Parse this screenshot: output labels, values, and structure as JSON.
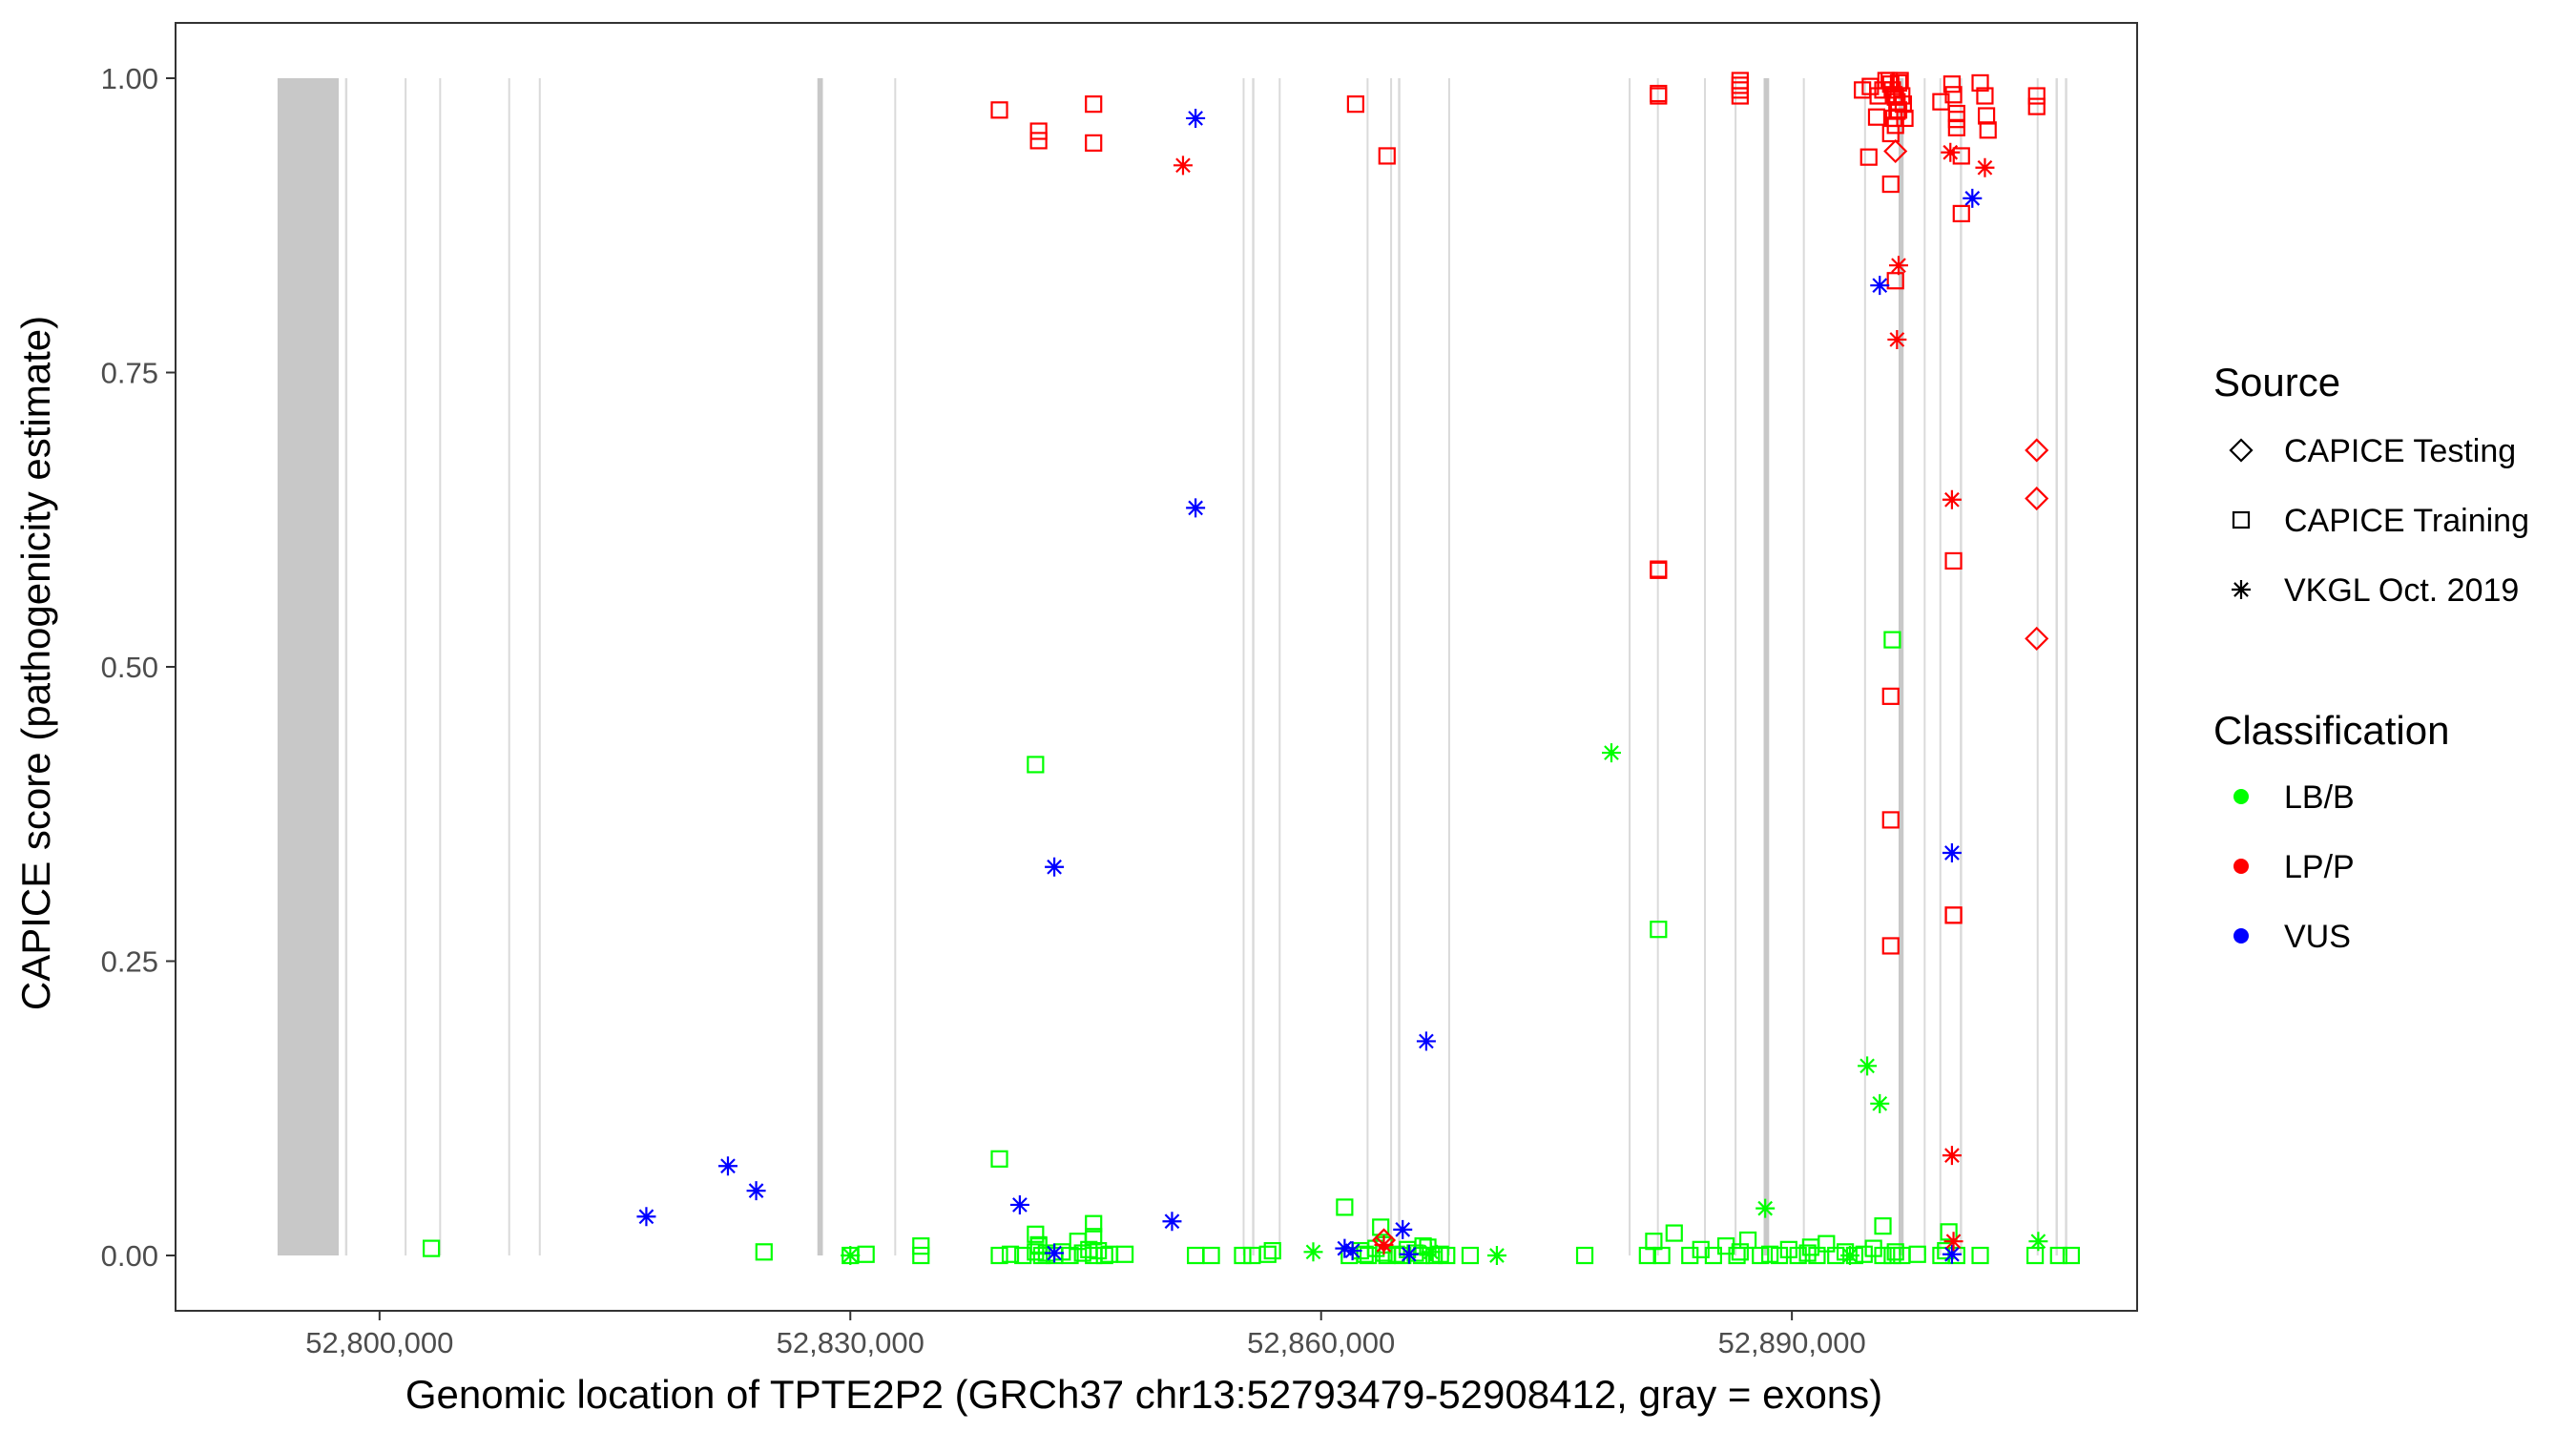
{
  "chart_data": {
    "type": "scatter",
    "title": "",
    "xlabel": "Genomic location of TPTE2P2 (GRCh37 chr13:52793479-52908412, gray = exons)",
    "ylabel": "CAPICE score (pathogenicity estimate)",
    "xlim": [
      52787000,
      52912000
    ],
    "ylim": [
      -0.047,
      1.047
    ],
    "x_ticks": [
      52800000,
      52830000,
      52860000,
      52890000
    ],
    "x_tick_labels": [
      "52,800,000",
      "52,830,000",
      "52,860,000",
      "52,890,000"
    ],
    "y_ticks": [
      0,
      0.25,
      0.5,
      0.75,
      1
    ],
    "y_tick_labels": [
      "0.00",
      "0.25",
      "0.50",
      "0.75",
      "1.00"
    ],
    "grid": false,
    "legend_position": "right",
    "legend": {
      "source_title": "Source",
      "sources": [
        {
          "key": "testing",
          "label": "CAPICE Testing",
          "shape": "diamond"
        },
        {
          "key": "training",
          "label": "CAPICE Training",
          "shape": "square"
        },
        {
          "key": "vkgl",
          "label": "VKGL Oct. 2019",
          "shape": "asterisk"
        }
      ],
      "classification_title": "Classification",
      "classes": [
        {
          "key": "LB/B",
          "label": "LB/B",
          "color": "#00ff00"
        },
        {
          "key": "LP/P",
          "label": "LP/P",
          "color": "#ff0000"
        },
        {
          "key": "VUS",
          "label": "VUS",
          "color": "#0000ff"
        }
      ]
    },
    "exons": [
      [
        52793500,
        52797400
      ],
      [
        52797800,
        52797950
      ],
      [
        52801600,
        52801720
      ],
      [
        52803800,
        52803920
      ],
      [
        52808200,
        52808320
      ],
      [
        52810150,
        52810270
      ],
      [
        52827900,
        52828250
      ],
      [
        52832800,
        52832900
      ],
      [
        52855000,
        52855120
      ],
      [
        52855600,
        52855750
      ],
      [
        52857300,
        52857420
      ],
      [
        52862900,
        52863020
      ],
      [
        52864400,
        52864520
      ],
      [
        52864900,
        52865050
      ],
      [
        52868100,
        52868220
      ],
      [
        52879600,
        52879720
      ],
      [
        52881400,
        52881500
      ],
      [
        52884400,
        52884520
      ],
      [
        52886350,
        52886450
      ],
      [
        52888200,
        52888550
      ],
      [
        52890700,
        52890800
      ],
      [
        52894600,
        52894720
      ],
      [
        52896800,
        52897120
      ],
      [
        52898400,
        52898520
      ],
      [
        52899400,
        52899520
      ],
      [
        52900700,
        52900850
      ],
      [
        52905600,
        52905720
      ],
      [
        52906800,
        52906950
      ],
      [
        52907400,
        52907550
      ]
    ],
    "series": [
      {
        "name": "CAPICE Training LP/P",
        "source": "training",
        "class": "LP/P",
        "x": [
          52839500,
          52842000,
          52842000,
          52845500,
          52845500,
          52862200,
          52864200,
          52881500,
          52881500,
          52881500,
          52886700,
          52886700,
          52886700,
          52886700,
          52894500,
          52895000,
          52895500,
          52895800,
          52896000,
          52896200,
          52896300,
          52896400,
          52896500,
          52896600,
          52896700,
          52896800,
          52896900,
          52897000,
          52897100,
          52897200,
          52895400,
          52896800,
          52894900,
          52896300,
          52896500,
          52896600,
          52896700,
          52899500,
          52900200,
          52900300,
          52900500,
          52900500,
          52900800,
          52900800,
          52902000,
          52902300,
          52902400,
          52902500,
          52905600,
          52905600,
          52896600,
          52900300,
          52900300,
          52881500,
          52900500,
          52896300,
          52896300,
          52896300,
          52900300,
          52896300
        ],
        "y": [
          0.973,
          0.955,
          0.947,
          0.978,
          0.945,
          0.978,
          0.934,
          0.987,
          0.985,
          0.583,
          0.998,
          0.994,
          0.99,
          0.985,
          0.99,
          0.993,
          0.985,
          0.99,
          0.998,
          0.998,
          0.995,
          0.99,
          0.986,
          0.984,
          0.98,
          0.996,
          0.998,
          0.985,
          0.978,
          0.966,
          0.967,
          0.973,
          0.933,
          0.953,
          0.966,
          0.96,
          0.972,
          0.98,
          0.995,
          0.986,
          0.97,
          0.965,
          0.934,
          0.885,
          0.996,
          0.985,
          0.968,
          0.956,
          0.985,
          0.976,
          0.828,
          0.59,
          0.289,
          0.582,
          0.958,
          0.91,
          0.475,
          0.37,
          0.289,
          0.263
        ]
      },
      {
        "name": "CAPICE Training LB/B",
        "source": "training",
        "class": "LB/B",
        "x": [
          52803300,
          52824500,
          52830000,
          52831000,
          52834500,
          52834500,
          52839500,
          52840200,
          52841000,
          52841800,
          52842000,
          52842200,
          52842500,
          52843000,
          52843500,
          52844000,
          52844500,
          52844800,
          52845200,
          52845500,
          52845800,
          52846200,
          52846500,
          52847500,
          52841800,
          52845500,
          52845500,
          52839500,
          52841800,
          52852000,
          52853000,
          52855000,
          52855600,
          52856600,
          52856900,
          52861800,
          52862500,
          52863000,
          52863500,
          52864000,
          52864200,
          52864800,
          52865200,
          52865500,
          52866000,
          52866400,
          52866800,
          52867200,
          52867600,
          52868000,
          52863800,
          52866500,
          52869500,
          52876800,
          52880800,
          52881200,
          52881700,
          52882500,
          52883500,
          52884200,
          52885000,
          52885800,
          52886500,
          52887200,
          52886700,
          52888000,
          52888600,
          52889200,
          52889800,
          52890400,
          52891000,
          52891600,
          52892200,
          52892800,
          52893400,
          52894000,
          52894600,
          52895200,
          52895800,
          52896400,
          52897000,
          52898000,
          52899500,
          52900000,
          52900500,
          52902000,
          52905500,
          52907000,
          52907800,
          52895800,
          52896400,
          52891200,
          52861500,
          52864000,
          52899800,
          52881500,
          52896600,
          52842000,
          52862800
        ],
        "y": [
          0.006,
          0.003,
          0.0,
          0.001,
          0.0,
          0.008,
          0.0,
          0.001,
          0.0,
          0.003,
          0.008,
          0.0,
          0.002,
          0.0,
          0.003,
          0.0,
          0.012,
          0.002,
          0.005,
          0.0,
          0.004,
          0.0,
          0.001,
          0.001,
          0.018,
          0.027,
          0.016,
          0.082,
          0.417,
          0.0,
          0.0,
          0.0,
          0.0,
          0.001,
          0.004,
          0.0,
          0.004,
          0.0,
          0.006,
          0.002,
          0.0,
          0.001,
          0.0,
          0.005,
          0.002,
          0.0,
          0.007,
          0.0,
          0.001,
          0.0,
          0.024,
          0.008,
          0.0,
          0.0,
          0.0,
          0.012,
          0.0,
          0.019,
          0.0,
          0.005,
          0.0,
          0.008,
          0.0,
          0.013,
          0.003,
          0.0,
          0.001,
          0.0,
          0.005,
          0.0,
          0.002,
          0.0,
          0.01,
          0.0,
          0.003,
          0.0,
          0.001,
          0.006,
          0.025,
          0.0,
          0.0,
          0.001,
          0.0,
          0.02,
          0.0,
          0.0,
          0.0,
          0.0,
          0.0,
          0.0,
          0.523,
          0.007,
          0.041,
          0.009,
          0.004,
          0.277,
          0.003,
          0.009,
          0.001
        ]
      },
      {
        "name": "CAPICE Testing LP/P",
        "source": "testing",
        "class": "LP/P",
        "x": [
          52896600,
          52905600,
          52905600,
          52905600,
          52864000
        ],
        "y": [
          0.938,
          0.684,
          0.643,
          0.524,
          0.013
        ]
      },
      {
        "name": "VKGL Oct. 2019 VUS",
        "source": "vkgl",
        "class": "VUS",
        "x": [
          52817000,
          52822200,
          52824000,
          52840800,
          52843000,
          52843000,
          52850500,
          52852000,
          52852000,
          52861500,
          52862000,
          52865200,
          52865600,
          52866700,
          52895600,
          52900200,
          52900200,
          52901500
        ],
        "y": [
          0.033,
          0.076,
          0.055,
          0.043,
          0.33,
          0.002,
          0.029,
          0.966,
          0.635,
          0.006,
          0.004,
          0.022,
          0.001,
          0.182,
          0.824,
          0.342,
          0.001,
          0.898
        ]
      },
      {
        "name": "VKGL Oct. 2019 LP/P",
        "source": "vkgl",
        "class": "LP/P",
        "x": [
          52851200,
          52896800,
          52896700,
          52900100,
          52900200,
          52900200,
          52902300,
          52900300,
          52864000
        ],
        "y": [
          0.926,
          0.841,
          0.778,
          0.937,
          0.642,
          0.085,
          0.924,
          0.012,
          0.009
        ]
      },
      {
        "name": "VKGL Oct. 2019 LB/B",
        "source": "vkgl",
        "class": "LB/B",
        "x": [
          52830000,
          52859500,
          52867000,
          52871200,
          52878500,
          52888300,
          52894800,
          52895600,
          52893700,
          52905700
        ],
        "y": [
          0.0,
          0.003,
          0.003,
          0.0,
          0.427,
          0.04,
          0.161,
          0.129,
          0.0,
          0.012
        ]
      }
    ]
  }
}
